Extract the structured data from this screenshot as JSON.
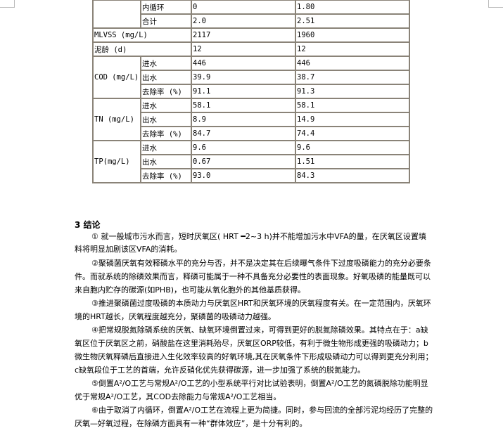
{
  "table": {
    "rows": [
      {
        "group": "",
        "param": "内循环",
        "a": "0",
        "b": "1.80"
      },
      {
        "group": "",
        "param": "合计",
        "a": "2.0",
        "b": "2.51"
      },
      {
        "label": "MLVSS (mg/L)",
        "a": "2117",
        "b": "1960"
      },
      {
        "label": "泥龄 (d)",
        "a": "12",
        "b": "12"
      },
      {
        "group": "COD (mg/L)",
        "param": "进水",
        "a": "446",
        "b": "446"
      },
      {
        "param": "出水",
        "a": "39.9",
        "b": "38.7"
      },
      {
        "param": "去除率 (%)",
        "a": "91.1",
        "b": "91.3"
      },
      {
        "group": "TN (mg/L)",
        "param": "进水",
        "a": "58.1",
        "b": "58.1"
      },
      {
        "param": "出水",
        "a": "8.9",
        "b": "14.9"
      },
      {
        "param": "去除率 (%)",
        "a": "84.7",
        "b": "74.4"
      },
      {
        "group": "TP(mg/L)",
        "param": "进水",
        "a": "9.6",
        "b": "9.6"
      },
      {
        "param": "出水",
        "a": "0.67",
        "b": "1.51"
      },
      {
        "param": "去除率 (%)",
        "a": "93.0",
        "b": "84.3"
      }
    ]
  },
  "section": {
    "heading": "3 结论",
    "lines": [
      "① 就一般城市污水而言，短时厌氧区( HRT ━2~3 h)并不能增加污水中VFA的量，在厌氧区设置填",
      "料将明显加剧该区VFA的消耗。",
      "②聚磷菌厌氧有效释磷水平的充分与否，并不是决定其在后续曝气条件下过度吸磷能力的充分必要条",
      "件。而就系统的除磷效果而言，释磷可能属于一种不具备充分必要性的表面现象。好氧吸磷的能量既可以",
      "来自胞内贮存的碳源(如PHB)，也可能从氧化胞外的其他基质获得。",
      "③推进聚磷菌过度吸磷的本质动力与厌氧区HRT和厌氧环境的厌氧程度有关。在一定范围内，厌氧环",
      "境的HRT越长，厌氧程度越充分，聚磷菌的吸磷动力越强。",
      "④把常规脱氮除磷系统的厌氧、缺氧环境倒置过来，可得到更好的脱氮除磷效果。其特点在于：a缺",
      "氧区位于厌氧区之前，硝酸盐在这里消耗殆尽，厌氧区ORP较低，有利于微生物形成更强的吸磷动力；b",
      "微生物厌氧释磷后直接进入生化效率较高的好氧环境,其在厌氧条件下形成吸磷动力可以得到更充分利用；",
      "c缺氧段位于工艺的首端，允许反硝化优先获得碳源，进一步加强了系统的脱氮能力。",
      "⑤倒置A²/O工艺与常规A²/O工艺的小型系统平行对比试验表明，倒置A²/O工艺的氮磷脱除功能明显",
      "优于常规A²/O工艺，其COD去除能力与常规A²/O工艺相当。",
      "⑥由于取消了内循环，倒置A²/O工艺在流程上更为简捷。同时，参与回流的全部污泥均经历了完整的",
      "厌氧—好氧过程，在除磷方面具有一种“群体效应”，是十分有利的。"
    ]
  }
}
